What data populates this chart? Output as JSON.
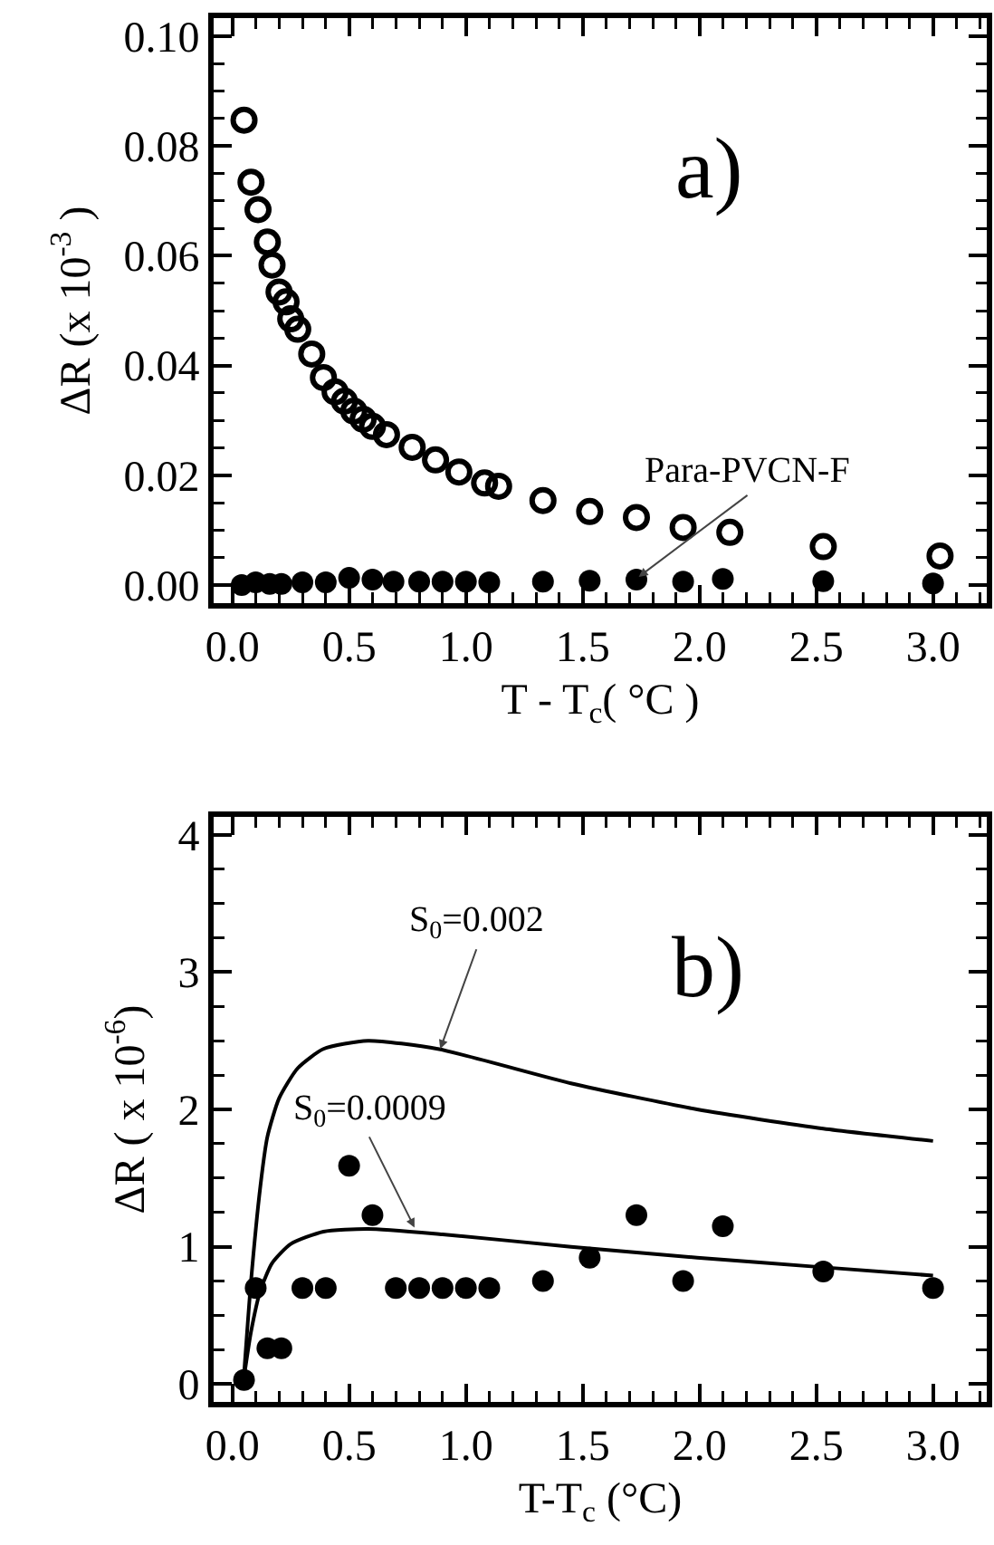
{
  "chart_data": [
    {
      "type": "scatter",
      "xlabel": "T - T$_{c}$( °C )",
      "ylabel": "ΔR (x 10$^{-3}$ )",
      "xlim": [
        -0.08,
        3.23
      ],
      "ylim": [
        -0.0033,
        0.1033
      ],
      "xticks": [
        {
          "value": 0,
          "label": "0.0"
        },
        {
          "value": 0.5,
          "label": "0.5"
        },
        {
          "value": 1,
          "label": "1.0"
        },
        {
          "value": 1.5,
          "label": "1.5"
        },
        {
          "value": 2,
          "label": "2.0"
        },
        {
          "value": 2.5,
          "label": "2.5"
        },
        {
          "value": 3,
          "label": "3.0"
        }
      ],
      "yticks": [
        {
          "value": 0,
          "label": "0.00"
        },
        {
          "value": 0.02,
          "label": "0.02"
        },
        {
          "value": 0.04,
          "label": "0.04"
        },
        {
          "value": 0.06,
          "label": "0.06"
        },
        {
          "value": 0.08,
          "label": "0.08"
        },
        {
          "value": 0.1,
          "label": "0.10"
        }
      ],
      "grid": false,
      "series": [
        {
          "color": "#000000",
          "marker": "circle-open",
          "x": [
            0.05,
            0.08,
            0.11,
            0.15,
            0.17,
            0.2,
            0.23,
            0.25,
            0.28,
            0.34,
            0.39,
            0.44,
            0.48,
            0.52,
            0.56,
            0.6,
            0.66,
            0.77,
            0.87,
            0.97,
            1.08,
            1.14,
            1.33,
            1.53,
            1.73,
            1.93,
            2.13,
            2.53,
            3.03
          ],
          "values": [
            0.0847,
            0.0734,
            0.0684,
            0.0625,
            0.0583,
            0.0534,
            0.0516,
            0.0485,
            0.0466,
            0.0421,
            0.0378,
            0.0352,
            0.0335,
            0.0317,
            0.0302,
            0.0289,
            0.0274,
            0.0251,
            0.0228,
            0.0206,
            0.0186,
            0.018,
            0.0154,
            0.0134,
            0.0123,
            0.0105,
            0.0096,
            0.007,
            0.0053
          ]
        },
        {
          "color": "#000000",
          "marker": "circle",
          "x": [
            0.04,
            0.1,
            0.16,
            0.21,
            0.3,
            0.4,
            0.5,
            0.6,
            0.69,
            0.8,
            0.9,
            1.0,
            1.1,
            1.33,
            1.53,
            1.73,
            1.93,
            2.1,
            2.53,
            3.0
          ],
          "values": [
            0,
            0.0005,
            0.0002,
            0.0002,
            0.0005,
            0.0005,
            0.0013,
            0.001,
            0.0006,
            0.0006,
            0.0006,
            0.0006,
            0.0005,
            0.0006,
            0.0008,
            0.001,
            0.0006,
            0.0011,
            0.0007,
            0.0003
          ]
        }
      ],
      "annotations": [
        "a)",
        {
          "text": "Para-PVCN-F",
          "x": 1.74,
          "y": 0.0015
        }
      ]
    },
    {
      "type": "scatter",
      "xlabel": "T-T$_{c}$ (°C)",
      "ylabel": "ΔR ( x 10$^{-6}$)",
      "xlim": [
        -0.08,
        3.23
      ],
      "ylim": [
        -0.13,
        4.13
      ],
      "xticks": [
        {
          "value": 0,
          "label": "0.0"
        },
        {
          "value": 0.5,
          "label": "0.5"
        },
        {
          "value": 1,
          "label": "1.0"
        },
        {
          "value": 1.5,
          "label": "1.5"
        },
        {
          "value": 2,
          "label": "2.0"
        },
        {
          "value": 2.5,
          "label": "2.5"
        },
        {
          "value": 3,
          "label": "3.0"
        }
      ],
      "yticks": [
        0,
        1,
        2,
        3,
        4
      ],
      "grid": false,
      "series": [
        {
          "type": "line",
          "color": "#000000",
          "marker": "none",
          "x": [
            0.05,
            0.08,
            0.12,
            0.15,
            0.2,
            0.28,
            0.39,
            0.58,
            0.88,
            1.45,
            1.99,
            2.53,
            3.0
          ],
          "values": [
            0.07,
            0.75,
            1.44,
            1.8,
            2.08,
            2.3,
            2.44,
            2.5,
            2.44,
            2.19,
            2.0,
            1.86,
            1.77
          ]
        },
        {
          "type": "line",
          "color": "#000000",
          "marker": "none",
          "x": [
            0.05,
            0.08,
            0.12,
            0.17,
            0.25,
            0.39,
            0.58,
            0.9,
            1.45,
            1.99,
            2.53,
            3.0
          ],
          "values": [
            0.05,
            0.38,
            0.68,
            0.88,
            1.02,
            1.11,
            1.13,
            1.09,
            1.0,
            0.92,
            0.85,
            0.79
          ]
        },
        {
          "color": "#000000",
          "marker": "circle",
          "x": [
            0.05,
            0.1,
            0.15,
            0.21,
            0.3,
            0.4,
            0.5,
            0.6,
            0.7,
            0.8,
            0.9,
            1.0,
            1.1,
            1.33,
            1.53,
            1.73,
            1.93,
            2.1,
            2.53,
            3.0
          ],
          "values": [
            0.03,
            0.7,
            0.26,
            0.26,
            0.7,
            0.7,
            1.59,
            1.23,
            0.7,
            0.7,
            0.7,
            0.7,
            0.7,
            0.75,
            0.92,
            1.23,
            0.75,
            1.15,
            0.82,
            0.7
          ]
        }
      ],
      "annotations": [
        "b)",
        {
          "text": "S$_{0}$=0.002",
          "x": 0.89,
          "y": 2.44
        },
        {
          "text": "S$_{0}$=0.0009",
          "x": 0.78,
          "y": 1.14
        }
      ]
    }
  ]
}
